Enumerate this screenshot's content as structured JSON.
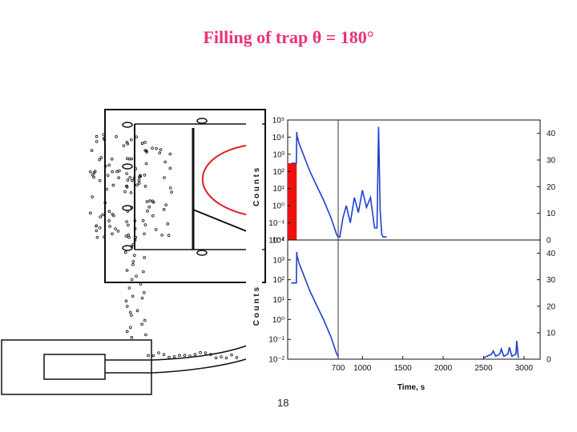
{
  "slide": {
    "title": "Filling of trap θ = 180°",
    "slide_number": "18"
  },
  "chart_data": [
    {
      "type": "line",
      "panel": "top",
      "yscale": "log",
      "ylim_left": [
        0.01,
        100000
      ],
      "ylim_right": [
        0,
        45
      ],
      "xlim": [
        0,
        3200
      ],
      "x_break": true,
      "left_ticks": [
        "10^5",
        "10^4",
        "10^3",
        "10^2",
        "10^1",
        "10^0",
        "10^-1",
        "10^-2"
      ],
      "right_ticks": [
        "40",
        "30",
        "20",
        "10",
        "0"
      ],
      "left_axis_label": "C o u n t s",
      "vline_x": 700,
      "series": [
        {
          "color": "#1f3fd0",
          "x": [
            50,
            100,
            120,
            125,
            130,
            160,
            200,
            300,
            400,
            500,
            600,
            680,
            700,
            720,
            760,
            800,
            850,
            900,
            950,
            1000,
            1050,
            1100,
            1150,
            1180,
            1200,
            1220,
            1240,
            1260,
            1300
          ],
          "y": [
            300,
            300,
            300,
            20000,
            12000,
            4000,
            1500,
            120,
            15,
            2,
            0.2,
            0.02,
            0.015,
            0.015,
            0.2,
            1,
            0.1,
            3,
            0.4,
            8,
            0.8,
            3,
            0.05,
            0.05,
            40000,
            0.5,
            0.02,
            0.015,
            0.015
          ]
        }
      ],
      "filled_region": {
        "color": "#ee1111",
        "x": [
          0,
          125
        ],
        "y": [
          0.01,
          300
        ]
      }
    },
    {
      "type": "line",
      "panel": "bottom",
      "yscale": "log",
      "ylim_left": [
        0.01,
        100000
      ],
      "ylim_right": [
        0,
        45
      ],
      "xlim": [
        0,
        3200
      ],
      "x_break": true,
      "left_ticks": [
        "10^4",
        "10^3",
        "10^2",
        "10^1",
        "10^0",
        "10^-1",
        "10^-2"
      ],
      "right_ticks": [
        "40",
        "30",
        "20",
        "10",
        "0"
      ],
      "x_ticks": [
        "700",
        "1000",
        "1500",
        "2000",
        "2500",
        "3000"
      ],
      "x_tick_values": [
        700,
        1000,
        1500,
        2000,
        2500,
        3000
      ],
      "left_axis_label": "C o u n t s",
      "xlabel": "Time, s",
      "vline_x": 700,
      "series": [
        {
          "color": "#1f3fd0",
          "x": [
            50,
            120,
            125,
            130,
            160,
            200,
            300,
            400,
            500,
            600,
            680,
            700
          ],
          "y": [
            300,
            300,
            20000,
            12000,
            4000,
            1500,
            120,
            15,
            2,
            0.2,
            0.02,
            0.015
          ]
        },
        {
          "color": "#1f3fd0",
          "x": [
            2500,
            2600,
            2620,
            2650,
            2700,
            2720,
            2750,
            2800,
            2820,
            2850,
            2900,
            2910,
            2930
          ],
          "y": [
            0.012,
            0.02,
            0.03,
            0.015,
            0.02,
            0.04,
            0.015,
            0.02,
            0.05,
            0.015,
            0.02,
            0.12,
            0.012
          ]
        }
      ]
    }
  ],
  "diagram": {
    "arc_color": "#dd2222"
  }
}
